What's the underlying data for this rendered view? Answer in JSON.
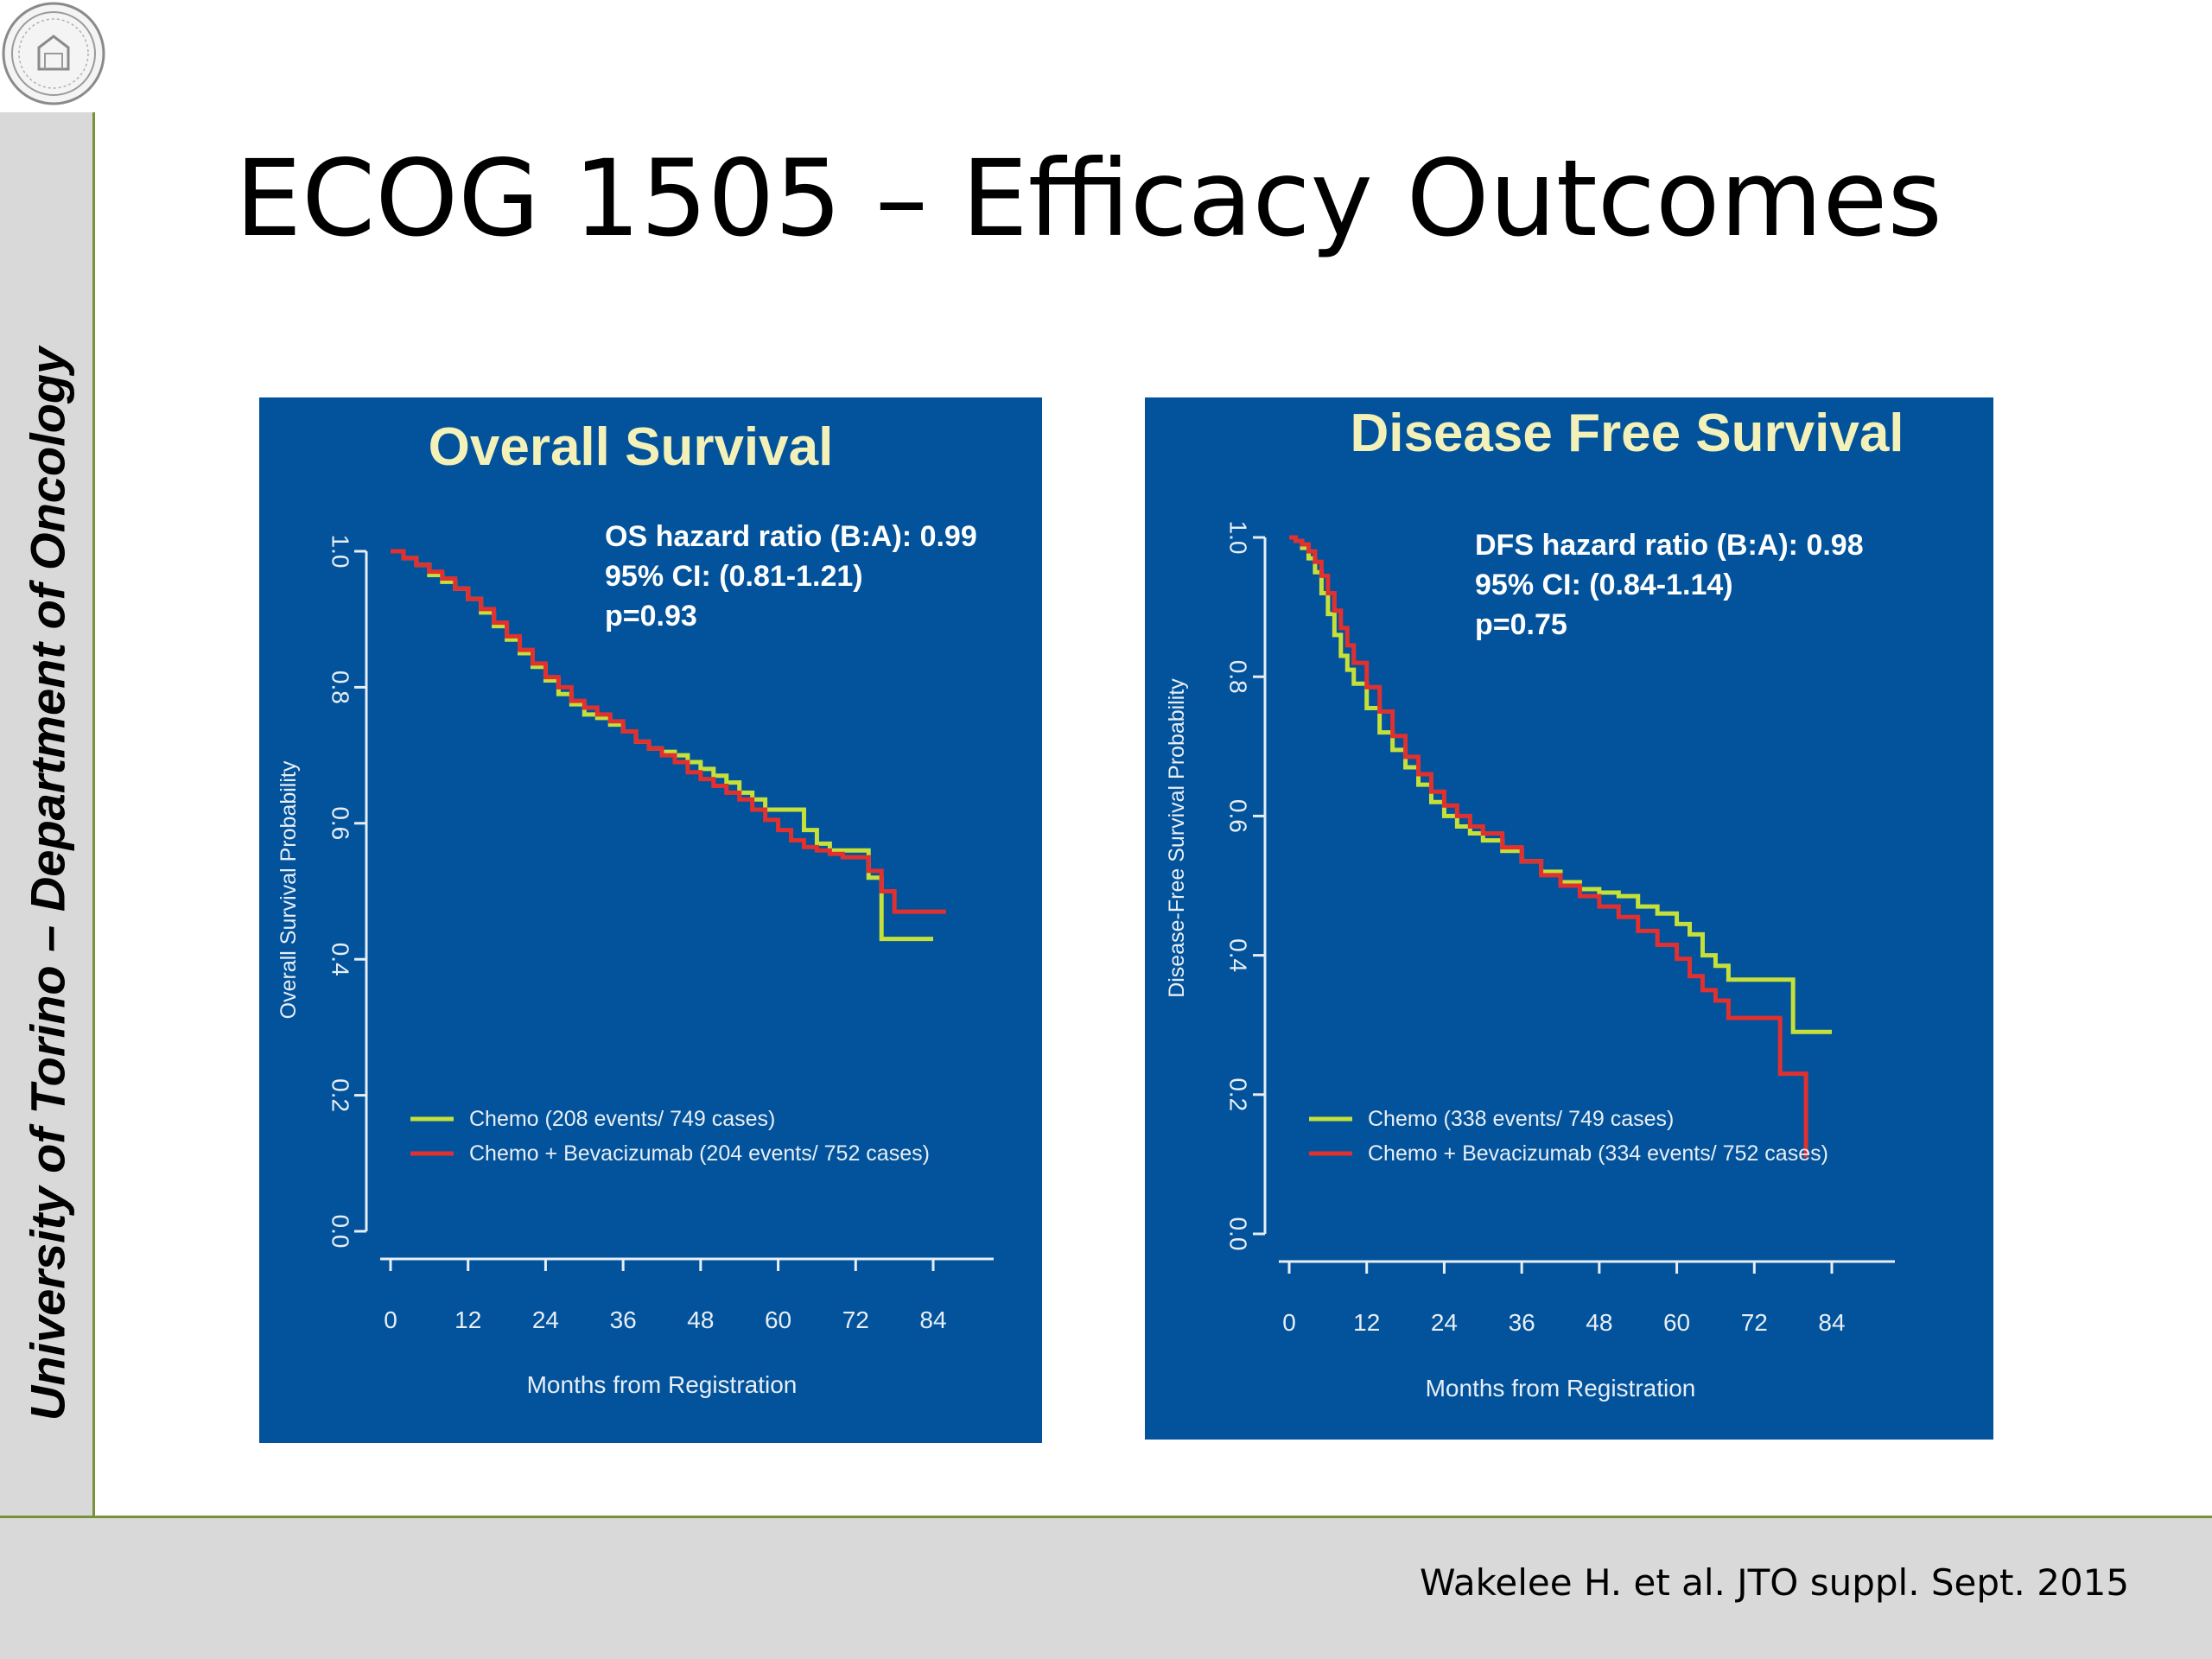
{
  "slide": {
    "title": "ECOG 1505 – Efficacy Outcomes",
    "sidebar_text": "University of Torino – Department of Oncology",
    "citation": "Wakelee H. et al. JTO suppl. Sept. 2015"
  },
  "colors": {
    "accent_line": "#76923c",
    "panel_bg": "#02539b",
    "title_text": "#f4f1b8",
    "chemo": "#c6e03a",
    "chemo_bev": "#e0302f",
    "axis": "#e8eef5"
  },
  "chart_data": [
    {
      "type": "line",
      "title": "Overall Survival",
      "xlabel": "Months from Registration",
      "ylabel": "Overall Survival Probability",
      "xticks": [
        "0",
        "12",
        "24",
        "36",
        "48",
        "60",
        "72",
        "84"
      ],
      "yticks": [
        "0.0",
        "0.2",
        "0.4",
        "0.6",
        "0.8",
        "1.0"
      ],
      "xlim": [
        0,
        90
      ],
      "ylim": [
        0,
        1.0
      ],
      "annotation": [
        "OS hazard ratio (B:A): 0.99",
        "95% CI: (0.81-1.21)",
        "p=0.93"
      ],
      "series": [
        {
          "name": "Chemo  (208 events/ 749 cases)",
          "color": "#c6e03a",
          "step": true,
          "x": [
            0,
            2,
            4,
            6,
            8,
            10,
            12,
            14,
            16,
            18,
            20,
            22,
            24,
            26,
            28,
            30,
            32,
            34,
            36,
            38,
            40,
            42,
            44,
            46,
            48,
            50,
            52,
            54,
            56,
            58,
            60,
            62,
            64,
            66,
            68,
            70,
            72,
            74,
            76,
            78,
            80,
            82,
            84
          ],
          "y": [
            1.0,
            0.99,
            0.98,
            0.965,
            0.955,
            0.945,
            0.93,
            0.91,
            0.89,
            0.87,
            0.85,
            0.83,
            0.81,
            0.79,
            0.775,
            0.76,
            0.755,
            0.745,
            0.735,
            0.72,
            0.71,
            0.705,
            0.7,
            0.69,
            0.68,
            0.67,
            0.66,
            0.645,
            0.635,
            0.62,
            0.62,
            0.62,
            0.59,
            0.57,
            0.56,
            0.56,
            0.56,
            0.52,
            0.43,
            0.43,
            0.43,
            0.43,
            0.43
          ]
        },
        {
          "name": "Chemo + Bevacizumab  (204 events/ 752 cases)",
          "color": "#e0302f",
          "step": true,
          "x": [
            0,
            2,
            4,
            6,
            8,
            10,
            12,
            14,
            16,
            18,
            20,
            22,
            24,
            26,
            28,
            30,
            32,
            34,
            36,
            38,
            40,
            42,
            44,
            46,
            48,
            50,
            52,
            54,
            56,
            58,
            60,
            62,
            64,
            66,
            68,
            70,
            72,
            74,
            76,
            78,
            80,
            82,
            84,
            86
          ],
          "y": [
            1.0,
            0.99,
            0.98,
            0.97,
            0.96,
            0.945,
            0.93,
            0.915,
            0.895,
            0.875,
            0.855,
            0.835,
            0.815,
            0.8,
            0.78,
            0.77,
            0.76,
            0.75,
            0.735,
            0.72,
            0.71,
            0.7,
            0.69,
            0.675,
            0.665,
            0.655,
            0.645,
            0.635,
            0.62,
            0.605,
            0.59,
            0.575,
            0.565,
            0.56,
            0.555,
            0.55,
            0.55,
            0.53,
            0.5,
            0.47,
            0.47,
            0.47,
            0.47,
            0.47
          ]
        }
      ]
    },
    {
      "type": "line",
      "title": "Disease Free Survival",
      "xlabel": "Months from Registration",
      "ylabel": "Disease-Free Survival Probability",
      "xticks": [
        "0",
        "12",
        "24",
        "36",
        "48",
        "60",
        "72",
        "84"
      ],
      "yticks": [
        "0.0",
        "0.2",
        "0.4",
        "0.6",
        "0.8",
        "1.0"
      ],
      "xlim": [
        0,
        90
      ],
      "ylim": [
        0,
        1.0
      ],
      "annotation": [
        "DFS hazard ratio (B:A): 0.98",
        "95% CI: (0.84-1.14)",
        "p=0.75"
      ],
      "series": [
        {
          "name": "Chemo  (338 events/ 749 cases)",
          "color": "#c6e03a",
          "step": true,
          "x": [
            0,
            1,
            2,
            3,
            4,
            5,
            6,
            7,
            8,
            9,
            10,
            12,
            14,
            16,
            18,
            20,
            22,
            24,
            26,
            28,
            30,
            33,
            36,
            39,
            42,
            45,
            48,
            51,
            54,
            57,
            60,
            62,
            64,
            66,
            68,
            70,
            72,
            74,
            76,
            78,
            80,
            82,
            84
          ],
          "y": [
            1.0,
            0.995,
            0.985,
            0.97,
            0.95,
            0.92,
            0.89,
            0.86,
            0.83,
            0.81,
            0.79,
            0.755,
            0.72,
            0.695,
            0.67,
            0.645,
            0.62,
            0.6,
            0.585,
            0.575,
            0.565,
            0.55,
            0.535,
            0.52,
            0.505,
            0.495,
            0.49,
            0.485,
            0.47,
            0.46,
            0.445,
            0.43,
            0.4,
            0.385,
            0.365,
            0.365,
            0.365,
            0.365,
            0.365,
            0.29,
            0.29,
            0.29,
            0.29
          ]
        },
        {
          "name": "Chemo + Bevacizumab  (334 events/ 752 cases)",
          "color": "#e0302f",
          "step": true,
          "x": [
            0,
            1,
            2,
            3,
            4,
            5,
            6,
            7,
            8,
            9,
            10,
            12,
            14,
            16,
            18,
            20,
            22,
            24,
            26,
            28,
            30,
            33,
            36,
            39,
            42,
            45,
            48,
            51,
            54,
            57,
            60,
            62,
            64,
            66,
            68,
            70,
            72,
            74,
            76,
            78,
            80
          ],
          "y": [
            1.0,
            0.995,
            0.99,
            0.98,
            0.965,
            0.945,
            0.92,
            0.895,
            0.87,
            0.845,
            0.82,
            0.785,
            0.75,
            0.715,
            0.685,
            0.66,
            0.635,
            0.615,
            0.6,
            0.585,
            0.575,
            0.555,
            0.535,
            0.515,
            0.5,
            0.485,
            0.47,
            0.455,
            0.435,
            0.415,
            0.395,
            0.37,
            0.35,
            0.335,
            0.31,
            0.31,
            0.31,
            0.31,
            0.23,
            0.23,
            0.11
          ]
        }
      ]
    }
  ]
}
